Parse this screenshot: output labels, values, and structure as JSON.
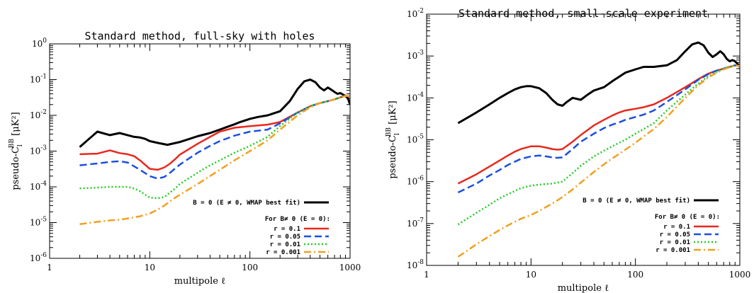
{
  "chart_data": [
    {
      "type": "line",
      "title": "Standard method, full-sky with holes",
      "xlabel": "multipole ℓ",
      "ylabel_main": "pseudo-C",
      "ylabel_sub": "l",
      "ylabel_sup": "BB",
      "ylabel_unit": " [μK²]",
      "xscale": "log",
      "yscale": "log",
      "xlim": [
        1,
        1000
      ],
      "ylim": [
        1e-06,
        1
      ],
      "x_ticks": [
        {
          "v": 1,
          "label": "1"
        },
        {
          "v": 10,
          "label": "10"
        },
        {
          "v": 100,
          "label": "100"
        },
        {
          "v": 1000,
          "label": "1000"
        }
      ],
      "y_ticks": [
        {
          "v": 1e-06,
          "m": "10",
          "e": "-6"
        },
        {
          "v": 1e-05,
          "m": "10",
          "e": "-5"
        },
        {
          "v": 0.0001,
          "m": "10",
          "e": "-4"
        },
        {
          "v": 0.001,
          "m": "10",
          "e": "-3"
        },
        {
          "v": 0.01,
          "m": "10",
          "e": "-2"
        },
        {
          "v": 0.1,
          "m": "10",
          "e": "-1"
        },
        {
          "v": 1,
          "m": "10",
          "e": "0"
        }
      ],
      "legend_heading": "For B≠ 0 (E = 0):",
      "legend_placement": "bottom-right",
      "series": [
        {
          "name": "B = 0 (E ≠ 0, WMAP best fit)",
          "color": "#000000",
          "dash": "solid",
          "width": 3,
          "x": [
            2,
            3,
            4,
            5,
            6,
            7,
            8,
            9,
            10,
            12,
            15,
            20,
            25,
            30,
            40,
            50,
            60,
            70,
            80,
            100,
            120,
            150,
            200,
            250,
            300,
            350,
            400,
            450,
            500,
            550,
            600,
            650,
            700,
            750,
            800,
            850,
            900,
            950,
            1000
          ],
          "y": [
            0.0013,
            0.0035,
            0.0028,
            0.0032,
            0.0028,
            0.0025,
            0.0024,
            0.0022,
            0.0019,
            0.0017,
            0.0015,
            0.0018,
            0.0022,
            0.0026,
            0.0032,
            0.004,
            0.0048,
            0.0056,
            0.0065,
            0.008,
            0.009,
            0.01,
            0.013,
            0.025,
            0.055,
            0.09,
            0.1,
            0.085,
            0.06,
            0.05,
            0.06,
            0.052,
            0.045,
            0.04,
            0.042,
            0.038,
            0.035,
            0.03,
            0.02
          ]
        },
        {
          "name": "r = 0.1",
          "color": "#e8281e",
          "dash": "solid",
          "width": 2.5,
          "x": [
            2,
            3,
            4,
            5,
            6,
            7,
            8,
            10,
            12,
            14,
            16,
            18,
            20,
            30,
            40,
            50,
            70,
            100,
            150,
            200,
            300,
            400,
            500,
            600,
            700,
            800,
            900,
            1000
          ],
          "y": [
            0.00082,
            0.00085,
            0.00105,
            0.00088,
            0.00082,
            0.00072,
            0.00055,
            0.00032,
            0.0003,
            0.00035,
            0.00045,
            0.0006,
            0.0008,
            0.0016,
            0.0025,
            0.0035,
            0.0045,
            0.005,
            0.0055,
            0.0065,
            0.012,
            0.018,
            0.022,
            0.025,
            0.028,
            0.032,
            0.035,
            0.034
          ]
        },
        {
          "name": "r = 0.05",
          "color": "#1a4fe0",
          "dash": "10,5",
          "width": 2.5,
          "x": [
            2,
            3,
            4,
            5,
            6,
            8,
            10,
            12,
            14,
            16,
            18,
            20,
            30,
            40,
            50,
            70,
            100,
            150,
            200,
            300,
            400,
            500,
            600,
            700,
            800,
            900,
            1000
          ],
          "y": [
            0.0004,
            0.00045,
            0.0005,
            0.00052,
            0.00048,
            0.0003,
            0.0002,
            0.00017,
            0.00019,
            0.00025,
            0.00033,
            0.00042,
            0.0009,
            0.0014,
            0.0019,
            0.0027,
            0.0035,
            0.004,
            0.006,
            0.012,
            0.018,
            0.022,
            0.025,
            0.028,
            0.032,
            0.035,
            0.034
          ]
        },
        {
          "name": "r = 0.01",
          "color": "#22cc22",
          "dash": "2,3",
          "width": 2.5,
          "x": [
            2,
            3,
            4,
            5,
            6,
            7,
            8,
            10,
            12,
            14,
            16,
            18,
            20,
            30,
            40,
            50,
            70,
            100,
            150,
            200,
            300,
            400,
            500,
            600,
            700,
            800,
            900,
            1000
          ],
          "y": [
            9e-05,
            9.5e-05,
            0.0001,
            0.0001,
            0.0001,
            9e-05,
            7.5e-05,
            5e-05,
            4.8e-05,
            5.2e-05,
            7e-05,
            9e-05,
            0.00012,
            0.00025,
            0.0004,
            0.00055,
            0.0009,
            0.0014,
            0.0025,
            0.005,
            0.012,
            0.018,
            0.022,
            0.025,
            0.028,
            0.032,
            0.035,
            0.034
          ]
        },
        {
          "name": "r = 0.001",
          "color": "#f0a020",
          "dash": "10,4,2,4",
          "width": 2.5,
          "x": [
            2,
            3,
            4,
            5,
            6,
            8,
            10,
            12,
            14,
            16,
            18,
            20,
            30,
            40,
            50,
            70,
            100,
            150,
            200,
            300,
            400,
            500,
            600,
            700,
            800,
            900,
            1000
          ],
          "y": [
            9e-06,
            1.05e-05,
            1.15e-05,
            1.2e-05,
            1.3e-05,
            1.5e-05,
            1.8e-05,
            2.3e-05,
            3e-05,
            4e-05,
            5e-05,
            6e-05,
            0.00012,
            0.0002,
            0.0003,
            0.00055,
            0.001,
            0.002,
            0.004,
            0.01,
            0.017,
            0.022,
            0.025,
            0.028,
            0.032,
            0.035,
            0.034
          ]
        }
      ]
    },
    {
      "type": "line",
      "title": "Standard method, small-scale experiment",
      "xlabel": "multipole ℓ",
      "ylabel_main": "pseudo-C",
      "ylabel_sub": "l",
      "ylabel_sup": "BB",
      "ylabel_unit": " [μK²]",
      "xscale": "log",
      "yscale": "log",
      "xlim": [
        1,
        1000
      ],
      "ylim": [
        1e-08,
        0.01
      ],
      "x_ticks": [
        {
          "v": 1,
          "label": "1"
        },
        {
          "v": 10,
          "label": "10"
        },
        {
          "v": 100,
          "label": "100"
        },
        {
          "v": 1000,
          "label": "1000"
        }
      ],
      "y_ticks": [
        {
          "v": 1e-08,
          "m": "10",
          "e": "-8"
        },
        {
          "v": 1e-07,
          "m": "10",
          "e": "-7"
        },
        {
          "v": 1e-06,
          "m": "10",
          "e": "-6"
        },
        {
          "v": 1e-05,
          "m": "10",
          "e": "-5"
        },
        {
          "v": 0.0001,
          "m": "10",
          "e": "-4"
        },
        {
          "v": 0.001,
          "m": "10",
          "e": "-3"
        },
        {
          "v": 0.01,
          "m": "10",
          "e": "-2"
        }
      ],
      "legend_heading": "For B≠ 0 (E = 0):",
      "legend_placement": "bottom-right",
      "series": [
        {
          "name": "B = 0 (E ≠ 0, WMAP best fit)",
          "color": "#000000",
          "dash": "solid",
          "width": 3,
          "x": [
            2,
            3,
            4,
            5,
            6,
            7,
            8,
            9,
            10,
            12,
            14,
            16,
            18,
            20,
            22,
            25,
            30,
            35,
            40,
            50,
            60,
            70,
            80,
            100,
            120,
            150,
            200,
            250,
            300,
            350,
            400,
            450,
            500,
            550,
            600,
            650,
            700,
            750,
            800,
            850,
            900,
            950,
            1000
          ],
          "y": [
            2.5e-05,
            4.5e-05,
            7e-05,
            0.0001,
            0.00013,
            0.00016,
            0.00018,
            0.00019,
            0.00019,
            0.00017,
            0.00013,
            9e-05,
            7e-05,
            6.5e-05,
            8e-05,
            0.0001,
            9e-05,
            0.00012,
            0.00015,
            0.00018,
            0.00025,
            0.00032,
            0.0004,
            0.00048,
            0.00055,
            0.00055,
            0.0006,
            0.0008,
            0.0013,
            0.0019,
            0.0021,
            0.0018,
            0.0012,
            0.00095,
            0.0011,
            0.0013,
            0.0011,
            0.00085,
            0.00075,
            0.0008,
            0.00075,
            0.00065,
            0.00055
          ]
        },
        {
          "name": "r = 0.1",
          "color": "#e8281e",
          "dash": "solid",
          "width": 2.5,
          "x": [
            2,
            3,
            4,
            5,
            6,
            7,
            8,
            10,
            12,
            14,
            16,
            18,
            20,
            25,
            30,
            40,
            50,
            60,
            70,
            80,
            100,
            120,
            150,
            200,
            300,
            400,
            500,
            600,
            700,
            800,
            900,
            1000
          ],
          "y": [
            9e-07,
            1.5e-06,
            2.3e-06,
            3.2e-06,
            4.2e-06,
            5.2e-06,
            6e-06,
            7e-06,
            7e-06,
            6.5e-06,
            6e-06,
            5.8e-06,
            6e-06,
            9e-06,
            1.3e-05,
            2.2e-05,
            3e-05,
            3.8e-05,
            4.5e-05,
            5e-05,
            5.5e-05,
            6e-05,
            7e-05,
            0.0001,
            0.00018,
            0.00028,
            0.00038,
            0.00045,
            0.0005,
            0.00055,
            0.0006,
            0.00058
          ]
        },
        {
          "name": "r = 0.05",
          "color": "#1a4fe0",
          "dash": "10,5",
          "width": 2.5,
          "x": [
            2,
            3,
            4,
            5,
            6,
            8,
            10,
            12,
            14,
            16,
            18,
            20,
            25,
            30,
            40,
            50,
            60,
            70,
            80,
            100,
            120,
            150,
            200,
            300,
            400,
            500,
            600,
            700,
            800,
            900,
            1000
          ],
          "y": [
            5.5e-07,
            9e-07,
            1.4e-06,
            1.9e-06,
            2.5e-06,
            3.5e-06,
            4e-06,
            4.2e-06,
            4e-06,
            3.8e-06,
            3.7e-06,
            3.8e-06,
            6e-06,
            9e-06,
            1.4e-05,
            1.9e-05,
            2.3e-05,
            2.6e-05,
            3e-05,
            3.5e-05,
            4e-05,
            5e-05,
            8e-05,
            0.00016,
            0.00027,
            0.00037,
            0.00045,
            0.0005,
            0.00055,
            0.0006,
            0.00058
          ]
        },
        {
          "name": "r = 0.01",
          "color": "#22cc22",
          "dash": "2,3",
          "width": 2.5,
          "x": [
            2,
            3,
            4,
            5,
            6,
            8,
            10,
            12,
            14,
            16,
            18,
            20,
            25,
            30,
            40,
            50,
            60,
            70,
            80,
            100,
            120,
            150,
            200,
            300,
            400,
            500,
            600,
            700,
            800,
            900,
            1000
          ],
          "y": [
            9.5e-08,
            1.8e-07,
            2.8e-07,
            4e-07,
            5e-07,
            7e-07,
            8e-07,
            8.5e-07,
            8.8e-07,
            9e-07,
            9.5e-07,
            1e-06,
            1.6e-06,
            2.4e-06,
            4e-06,
            5.5e-06,
            7e-06,
            8.5e-06,
            1e-05,
            1.4e-05,
            1.8e-05,
            2.5e-05,
            5e-05,
            0.00012,
            0.00022,
            0.00033,
            0.00042,
            0.0005,
            0.00055,
            0.0006,
            0.00058
          ]
        },
        {
          "name": "r = 0.001",
          "color": "#f0a020",
          "dash": "10,4,2,4",
          "width": 2.5,
          "x": [
            2,
            3,
            4,
            5,
            6,
            8,
            10,
            12,
            14,
            16,
            18,
            20,
            25,
            30,
            40,
            50,
            60,
            70,
            80,
            100,
            120,
            150,
            200,
            300,
            400,
            500,
            600,
            700,
            800,
            900,
            1000
          ],
          "y": [
            1.6e-08,
            3.2e-08,
            5e-08,
            7e-08,
            9e-08,
            1.3e-07,
            1.6e-07,
            2e-07,
            2.5e-07,
            3e-07,
            3.6e-07,
            4.3e-07,
            6.5e-07,
            9.5e-07,
            1.7e-06,
            2.6e-06,
            3.6e-06,
            4.6e-06,
            5.8e-06,
            8.5e-06,
            1.2e-05,
            1.8e-05,
            3.5e-05,
            0.0001,
            0.0002,
            0.00031,
            0.0004,
            0.00048,
            0.00054,
            0.0006,
            0.00058
          ]
        }
      ]
    }
  ]
}
